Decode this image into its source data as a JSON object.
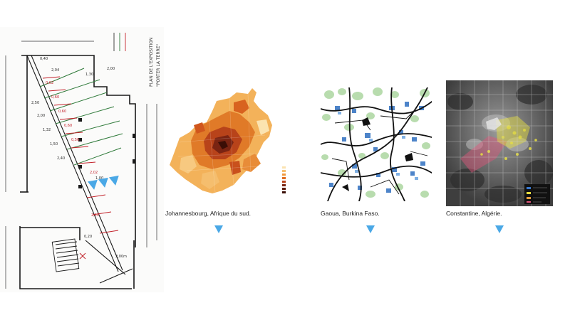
{
  "sketch": {
    "title_lines": [
      "PLAN DE L'EXPOSITION",
      "\"PORTER LA TERRE\""
    ]
  },
  "captions": {
    "johannesburg": "Johannesbourg, Afrique du sud.",
    "gaoua": "Gaoua, Burkina Faso.",
    "constantine": "Constantine, Algérie."
  },
  "colors": {
    "marker": "#4aa8e6",
    "johannesburg_palette": [
      "#fbe3b0",
      "#f6c070",
      "#f19a3e",
      "#e06c1f",
      "#b8431a",
      "#7a2412",
      "#3a0e06"
    ],
    "gaoua_green": "#b8dcae",
    "gaoua_blue": "#2f6fc0",
    "constantine_yellow": "#e8e040",
    "constantine_pink": "#e0557a"
  },
  "icons": [
    "triangle-marker-icon"
  ]
}
